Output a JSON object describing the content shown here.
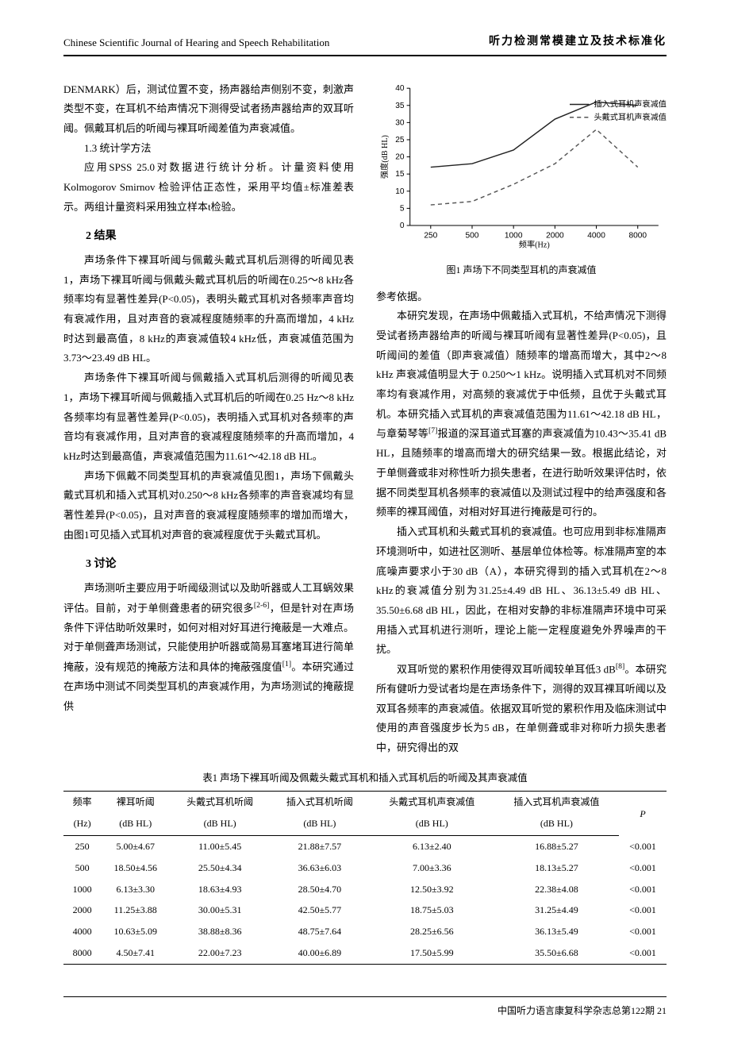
{
  "header": {
    "journal_en": "Chinese Scientific Journal of Hearing and Speech Rehabilitation",
    "section_tag": "听力检测常模建立及技术标准化"
  },
  "left_col": {
    "p1": "DENMARK）后，测试位置不变，扬声器给声侧别不变，刺激声类型不变，在耳机不给声情况下测得受试者扬声器给声的双耳听阈。佩戴耳机后的听阈与裸耳听阈差值为声衰减值。",
    "sub13": "1.3 统计学方法",
    "p2": "应用SPSS 25.0对数据进行统计分析。计量资料使用Kolmogorov Smirnov 检验评估正态性，采用平均值±标准差表示。两组计量资料采用独立样本t检验。",
    "h2_results": "2 结果",
    "r1": "声场条件下裸耳听阈与佩戴头戴式耳机后测得的听阈见表1，声场下裸耳听阈与佩戴头戴式耳机后的听阈在0.25～8 kHz各频率均有显著性差异(P<0.05)，表明头戴式耳机对各频率声音均有衰减作用，且对声音的衰减程度随频率的升高而增加，4 kHz时达到最高值，8 kHz的声衰减值较4 kHz低，声衰减值范围为3.73～23.49 dB HL。",
    "r2": "声场条件下裸耳听阈与佩戴插入式耳机后测得的听阈见表1，声场下裸耳听阈与佩戴插入式耳机后的听阈在0.25 Hz～8 kHz各频率均有显著性差异(P<0.05)，表明插入式耳机对各频率的声音均有衰减作用，且对声音的衰减程度随频率的升高而增加，4 kHz时达到最高值，声衰减值范围为11.61～42.18 dB HL。",
    "r3": "声场下佩戴不同类型耳机的声衰减值见图1，声场下佩戴头戴式耳机和插入式耳机对0.250～8 kHz各频率的声音衰减均有显著性差异(P<0.05)，且对声音的衰减程度随频率的增加而增大，由图1可见插入式耳机对声音的衰减程度优于头戴式耳机。",
    "h2_disc": "3 讨论",
    "d1a": "声场测听主要应用于听阈级测试以及助听器或人工耳蜗效果评估。目前，对于单侧聋患者的研究很多",
    "d1_ref": "[2-6]",
    "d1b": "，但是针对在声场条件下评估助听效果时，如何对相对好耳进行掩蔽是一大难点。对于单侧聋声场测试，只能使用护听器或简易耳塞堵耳进行简单掩蔽，没有规范的掩蔽方法和具体的掩蔽强度值",
    "d1_ref2": "[1]",
    "d1c": "。本研究通过在声场中测试不同类型耳机的声衰减作用，为声场测试的掩蔽提供"
  },
  "right_col": {
    "fig_caption": "图1 声场下不同类型耳机的声衰减值",
    "p_cont": "参考依据。",
    "p2a": "本研究发现，在声场中佩戴插入式耳机，不给声情况下测得受试者扬声器给声的听阈与裸耳听阈有显著性差异(P<0.05)，且听阈间的差值（即声衰减值）随频率的增高而增大，其中2～8 kHz 声衰减值明显大于 0.250～1 kHz。说明插入式耳机对不同频率均有衰减作用，对高频的衰减优于中低频，且优于头戴式耳机。本研究插入式耳机的声衰减值范围为11.61～42.18 dB HL，与章菊琴等",
    "p2_ref": "[7]",
    "p2b": "报道的深耳道式耳塞的声衰减值为10.43～35.41 dB HL，且随频率的增高而增大的研究结果一致。根据此结论，对于单侧聋或非对称性听力损失患者，在进行助听效果评估时，依据不同类型耳机各频率的衰减值以及测试过程中的给声强度和各频率的裸耳阈值，对相对好耳进行掩蔽是可行的。",
    "p3": "插入式耳机和头戴式耳机的衰减值。也可应用到非标准隔声环境测听中，如进社区测听、基层单位体检等。标准隔声室的本底噪声要求小于30 dB（A），本研究得到的插入式耳机在2～8 kHz的衰减值分别为31.25±4.49 dB HL、36.13±5.49 dB HL、35.50±6.68 dB HL，因此，在相对安静的非标准隔声环境中可采用插入式耳机进行测听，理论上能一定程度避免外界噪声的干扰。",
    "p4a": "双耳听觉的累积作用使得双耳听阈较单耳低3 dB",
    "p4_ref": "[8]",
    "p4b": "。本研究所有健听力受试者均是在声场条件下，测得的双耳裸耳听阈以及双耳各频率的声衰减值。依据双耳听觉的累积作用及临床测试中使用的声音强度步长为5 dB，在单侧聋或非对称听力损失患者中，研究得出的双"
  },
  "chart": {
    "type": "line",
    "x_ticks": [
      "250",
      "500",
      "1000",
      "2000",
      "4000",
      "8000"
    ],
    "x_label": "频率(Hz)",
    "y_label": "强度(dB HL)",
    "y_min": 0,
    "y_max": 40,
    "y_step": 5,
    "series": [
      {
        "name": "插入式耳机声衰减值",
        "style": "solid",
        "color": "#222222",
        "values": [
          17,
          18,
          22,
          31,
          36,
          35
        ]
      },
      {
        "name": "头戴式耳机声衰减值",
        "style": "dash",
        "color": "#666666",
        "values": [
          6,
          7,
          12,
          18,
          28,
          17
        ]
      }
    ],
    "background": "#ffffff",
    "axis_color": "#000000",
    "font_family": "SimSun, Arial",
    "title_fontsize": 11,
    "label_fontsize": 10
  },
  "table": {
    "caption": "表1 声场下裸耳听阈及佩戴头戴式耳机和插入式耳机后的听阈及其声衰减值",
    "columns": [
      {
        "h1": "频率",
        "h2": "(Hz)"
      },
      {
        "h1": "裸耳听阈",
        "h2": "(dB HL)"
      },
      {
        "h1": "头戴式耳机听阈",
        "h2": "(dB HL)"
      },
      {
        "h1": "插入式耳机听阈",
        "h2": "(dB HL)"
      },
      {
        "h1": "头戴式耳机声衰减值",
        "h2": "(dB HL)"
      },
      {
        "h1": "插入式耳机声衰减值",
        "h2": "(dB HL)"
      },
      {
        "h1": "P",
        "h2": ""
      }
    ],
    "rows": [
      [
        "250",
        "5.00±4.67",
        "11.00±5.45",
        "21.88±7.57",
        "6.13±2.40",
        "16.88±5.27",
        "<0.001"
      ],
      [
        "500",
        "18.50±4.56",
        "25.50±4.34",
        "36.63±6.03",
        "7.00±3.36",
        "18.13±5.27",
        "<0.001"
      ],
      [
        "1000",
        "6.13±3.30",
        "18.63±4.93",
        "28.50±4.70",
        "12.50±3.92",
        "22.38±4.08",
        "<0.001"
      ],
      [
        "2000",
        "11.25±3.88",
        "30.00±5.31",
        "42.50±5.77",
        "18.75±5.03",
        "31.25±4.49",
        "<0.001"
      ],
      [
        "4000",
        "10.63±5.09",
        "38.88±8.36",
        "48.75±7.64",
        "28.25±6.56",
        "36.13±5.49",
        "<0.001"
      ],
      [
        "8000",
        "4.50±7.41",
        "22.00±7.23",
        "40.00±6.89",
        "17.50±5.99",
        "35.50±6.68",
        "<0.001"
      ]
    ]
  },
  "footer": {
    "text": "中国听力语言康复科学杂志总第122期 21"
  }
}
